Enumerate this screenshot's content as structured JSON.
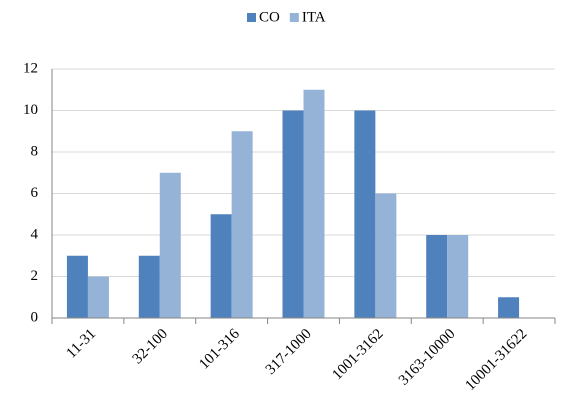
{
  "chart_data": {
    "type": "bar",
    "categories": [
      "11-31",
      "32-100",
      "101-316",
      "317-1000",
      "1001-3162",
      "3163-10000",
      "10001-31622"
    ],
    "series": [
      {
        "name": "CO",
        "color": "#4f81bd",
        "values": [
          3,
          3,
          5,
          10,
          10,
          4,
          1
        ]
      },
      {
        "name": "ITA",
        "color": "#95b3d7",
        "values": [
          2,
          7,
          9,
          11,
          6,
          4,
          0
        ]
      }
    ],
    "ylim": [
      0,
      12
    ],
    "yticks": [
      0,
      2,
      4,
      6,
      8,
      10,
      12
    ],
    "grid": true,
    "legend": "top"
  }
}
